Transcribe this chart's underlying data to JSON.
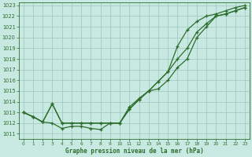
{
  "title": "Graphe pression niveau de la mer (hPa)",
  "background_color": "#c8e8e2",
  "grid_color": "#a0c8c0",
  "line_color": "#2d6e2d",
  "ylim_min": 1011,
  "ylim_max": 1023,
  "xlim_min": 0,
  "xlim_max": 23,
  "ytick_vals": [
    1011,
    1012,
    1013,
    1014,
    1015,
    1016,
    1017,
    1018,
    1019,
    1020,
    1021,
    1022,
    1023
  ],
  "xtick_vals": [
    0,
    1,
    2,
    3,
    4,
    5,
    6,
    7,
    8,
    9,
    10,
    11,
    12,
    13,
    14,
    15,
    16,
    17,
    18,
    19,
    20,
    21,
    22,
    23
  ],
  "series": [
    [
      1013.0,
      1012.6,
      1012.1,
      1012.0,
      1011.5,
      1011.7,
      1011.7,
      1011.5,
      1011.4,
      1012.0,
      1012.0,
      1013.5,
      1014.3,
      1015.0,
      1015.2,
      1016.0,
      1017.2,
      1018.0,
      1020.0,
      1021.0,
      1022.0,
      1022.2,
      1022.5,
      1022.8
    ],
    [
      1013.0,
      1012.6,
      1012.1,
      1013.8,
      1012.0,
      1012.0,
      1012.0,
      1012.0,
      1012.0,
      1012.0,
      1012.0,
      1013.3,
      1014.2,
      1015.0,
      1015.9,
      1016.8,
      1018.0,
      1019.0,
      1020.5,
      1021.3,
      1022.0,
      1022.2,
      1022.5,
      1022.8
    ],
    [
      1013.0,
      1012.6,
      1012.1,
      1013.8,
      1012.0,
      1012.0,
      1012.0,
      1012.0,
      1012.0,
      1012.0,
      1012.0,
      1013.3,
      1014.2,
      1015.0,
      1015.9,
      1016.8,
      1019.2,
      1020.7,
      1021.5,
      1022.0,
      1022.2,
      1022.5,
      1022.8,
      1023.0
    ]
  ]
}
